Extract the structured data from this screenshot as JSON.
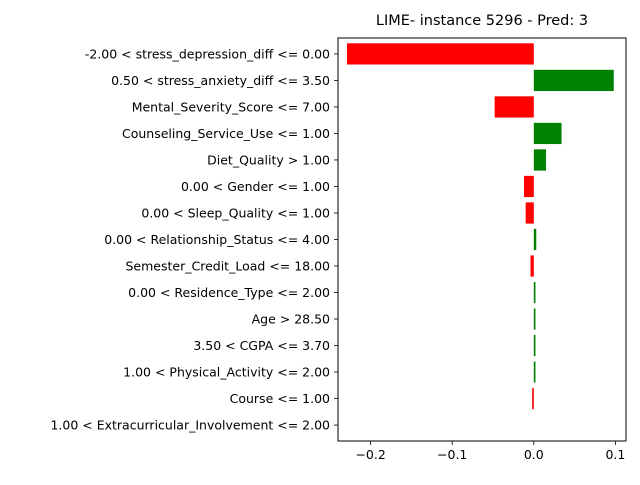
{
  "chart_data": {
    "type": "bar",
    "orientation": "horizontal",
    "title": "LIME- instance 5296 - Pred: 3",
    "xlabel": "",
    "ylabel": "",
    "xlim": [
      -0.24,
      0.113
    ],
    "xticks": [
      -0.2,
      -0.1,
      0.0,
      0.1
    ],
    "xtick_labels": [
      "−0.2",
      "−0.1",
      "0.0",
      "0.1"
    ],
    "grid": false,
    "legend": "none",
    "positive_color": "#008000",
    "negative_color": "#ff0000",
    "categories": [
      "-2.00 < stress_depression_diff <= 0.00",
      "0.50 < stress_anxiety_diff <= 3.50",
      "Mental_Severity_Score <= 7.00",
      "Counseling_Service_Use <= 1.00",
      "Diet_Quality > 1.00",
      "0.00 < Gender <= 1.00",
      "0.00 < Sleep_Quality <= 1.00",
      "0.00 < Relationship_Status <= 4.00",
      "Semester_Credit_Load <= 18.00",
      "0.00 < Residence_Type <= 2.00",
      "Age > 28.50",
      "3.50 < CGPA <= 3.70",
      "1.00 < Physical_Activity <= 2.00",
      "Course <= 1.00",
      "1.00 < Extracurricular_Involvement <= 2.00"
    ],
    "values": [
      -0.229,
      0.098,
      -0.048,
      0.034,
      0.015,
      -0.012,
      -0.01,
      0.003,
      -0.004,
      0.002,
      0.002,
      0.002,
      0.002,
      -0.002,
      0.0
    ]
  }
}
